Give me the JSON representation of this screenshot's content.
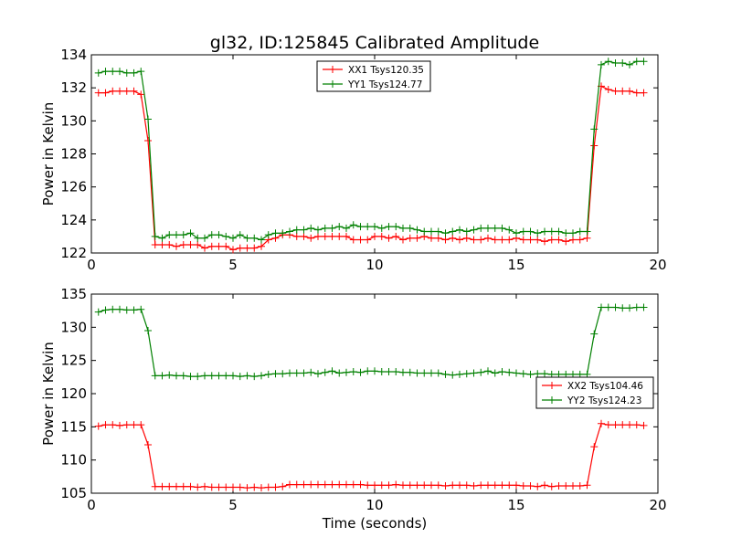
{
  "chart_data": [
    {
      "type": "line",
      "title": "gl32, ID:125845 Calibrated Amplitude",
      "xlabel": "",
      "ylabel": "Power in Kelvin",
      "xlim": [
        0,
        20
      ],
      "ylim": [
        122,
        134
      ],
      "xticks": [
        0,
        5,
        10,
        15,
        20
      ],
      "yticks": [
        122,
        124,
        126,
        128,
        130,
        132,
        134
      ],
      "legend_position": "top-center",
      "series": [
        {
          "name": "XX1 Tsys120.35",
          "color": "#ff0000",
          "x": [
            0.25,
            0.5,
            0.75,
            1.0,
            1.25,
            1.5,
            1.75,
            2.0,
            2.25,
            2.5,
            2.75,
            3.0,
            3.25,
            3.5,
            3.75,
            4.0,
            4.25,
            4.5,
            4.75,
            5.0,
            5.25,
            5.5,
            5.75,
            6.0,
            6.25,
            6.5,
            6.75,
            7.0,
            7.25,
            7.5,
            7.75,
            8.0,
            8.25,
            8.5,
            8.75,
            9.0,
            9.25,
            9.5,
            9.75,
            10.0,
            10.25,
            10.5,
            10.75,
            11.0,
            11.25,
            11.5,
            11.75,
            12.0,
            12.25,
            12.5,
            12.75,
            13.0,
            13.25,
            13.5,
            13.75,
            14.0,
            14.25,
            14.5,
            14.75,
            15.0,
            15.25,
            15.5,
            15.75,
            16.0,
            16.25,
            16.5,
            16.75,
            17.0,
            17.25,
            17.5,
            17.75,
            18.0,
            18.25,
            18.5,
            18.75,
            19.0,
            19.25,
            19.5
          ],
          "y": [
            131.7,
            131.7,
            131.8,
            131.8,
            131.8,
            131.8,
            131.6,
            128.8,
            122.5,
            122.5,
            122.5,
            122.4,
            122.5,
            122.5,
            122.5,
            122.3,
            122.4,
            122.4,
            122.4,
            122.2,
            122.3,
            122.3,
            122.3,
            122.4,
            122.8,
            122.9,
            123.1,
            123.1,
            123.0,
            123.0,
            122.9,
            123.0,
            123.0,
            123.0,
            123.0,
            123.0,
            122.8,
            122.8,
            122.8,
            123.0,
            123.0,
            122.9,
            123.0,
            122.8,
            122.9,
            122.9,
            123.0,
            122.9,
            122.9,
            122.8,
            122.9,
            122.8,
            122.9,
            122.8,
            122.8,
            122.9,
            122.8,
            122.8,
            122.8,
            122.9,
            122.8,
            122.8,
            122.8,
            122.7,
            122.8,
            122.8,
            122.7,
            122.8,
            122.8,
            122.9,
            128.5,
            132.1,
            131.9,
            131.8,
            131.8,
            131.8,
            131.7,
            131.7
          ]
        },
        {
          "name": "YY1 Tsys124.77",
          "color": "#008000",
          "x": [
            0.25,
            0.5,
            0.75,
            1.0,
            1.25,
            1.5,
            1.75,
            2.0,
            2.25,
            2.5,
            2.75,
            3.0,
            3.25,
            3.5,
            3.75,
            4.0,
            4.25,
            4.5,
            4.75,
            5.0,
            5.25,
            5.5,
            5.75,
            6.0,
            6.25,
            6.5,
            6.75,
            7.0,
            7.25,
            7.5,
            7.75,
            8.0,
            8.25,
            8.5,
            8.75,
            9.0,
            9.25,
            9.5,
            9.75,
            10.0,
            10.25,
            10.5,
            10.75,
            11.0,
            11.25,
            11.5,
            11.75,
            12.0,
            12.25,
            12.5,
            12.75,
            13.0,
            13.25,
            13.5,
            13.75,
            14.0,
            14.25,
            14.5,
            14.75,
            15.0,
            15.25,
            15.5,
            15.75,
            16.0,
            16.25,
            16.5,
            16.75,
            17.0,
            17.25,
            17.5,
            17.75,
            18.0,
            18.25,
            18.5,
            18.75,
            19.0,
            19.25,
            19.5
          ],
          "y": [
            132.9,
            133.0,
            133.0,
            133.0,
            132.9,
            132.9,
            133.0,
            130.1,
            123.0,
            122.9,
            123.1,
            123.1,
            123.1,
            123.2,
            122.9,
            122.9,
            123.1,
            123.1,
            123.0,
            122.9,
            123.1,
            122.9,
            122.9,
            122.8,
            123.1,
            123.2,
            123.2,
            123.3,
            123.4,
            123.4,
            123.5,
            123.4,
            123.5,
            123.5,
            123.6,
            123.5,
            123.7,
            123.6,
            123.6,
            123.6,
            123.5,
            123.6,
            123.6,
            123.5,
            123.5,
            123.4,
            123.3,
            123.3,
            123.3,
            123.2,
            123.3,
            123.4,
            123.3,
            123.4,
            123.5,
            123.5,
            123.5,
            123.5,
            123.4,
            123.2,
            123.3,
            123.3,
            123.2,
            123.3,
            123.3,
            123.3,
            123.2,
            123.2,
            123.3,
            123.3,
            129.5,
            133.4,
            133.6,
            133.5,
            133.5,
            133.4,
            133.6,
            133.6
          ]
        }
      ]
    },
    {
      "type": "line",
      "title": "",
      "xlabel": "Time (seconds)",
      "ylabel": "Power in Kelvin",
      "xlim": [
        0,
        20
      ],
      "ylim": [
        105,
        135
      ],
      "xticks": [
        0,
        5,
        10,
        15,
        20
      ],
      "yticks": [
        105,
        110,
        115,
        120,
        125,
        130,
        135
      ],
      "legend_position": "center-right",
      "series": [
        {
          "name": "XX2 Tsys104.46",
          "color": "#ff0000",
          "x": [
            0.25,
            0.5,
            0.75,
            1.0,
            1.25,
            1.5,
            1.75,
            2.0,
            2.25,
            2.5,
            2.75,
            3.0,
            3.25,
            3.5,
            3.75,
            4.0,
            4.25,
            4.5,
            4.75,
            5.0,
            5.25,
            5.5,
            5.75,
            6.0,
            6.25,
            6.5,
            6.75,
            7.0,
            7.25,
            7.5,
            7.75,
            8.0,
            8.25,
            8.5,
            8.75,
            9.0,
            9.25,
            9.5,
            9.75,
            10.0,
            10.25,
            10.5,
            10.75,
            11.0,
            11.25,
            11.5,
            11.75,
            12.0,
            12.25,
            12.5,
            12.75,
            13.0,
            13.25,
            13.5,
            13.75,
            14.0,
            14.25,
            14.5,
            14.75,
            15.0,
            15.25,
            15.5,
            15.75,
            16.0,
            16.25,
            16.5,
            16.75,
            17.0,
            17.25,
            17.5,
            17.75,
            18.0,
            18.25,
            18.5,
            18.75,
            19.0,
            19.25,
            19.5
          ],
          "y": [
            115.1,
            115.3,
            115.3,
            115.2,
            115.3,
            115.3,
            115.3,
            112.3,
            106.0,
            106.0,
            106.0,
            106.0,
            106.0,
            106.0,
            105.9,
            106.0,
            105.9,
            105.9,
            105.9,
            105.9,
            105.9,
            105.8,
            105.9,
            105.8,
            105.9,
            105.9,
            106.0,
            106.3,
            106.3,
            106.3,
            106.3,
            106.3,
            106.3,
            106.3,
            106.3,
            106.3,
            106.3,
            106.3,
            106.2,
            106.2,
            106.2,
            106.2,
            106.3,
            106.2,
            106.2,
            106.2,
            106.2,
            106.2,
            106.2,
            106.1,
            106.2,
            106.2,
            106.2,
            106.1,
            106.2,
            106.2,
            106.2,
            106.2,
            106.2,
            106.2,
            106.1,
            106.1,
            106.0,
            106.2,
            106.0,
            106.1,
            106.1,
            106.1,
            106.1,
            106.2,
            112.0,
            115.5,
            115.3,
            115.3,
            115.3,
            115.3,
            115.3,
            115.2
          ]
        },
        {
          "name": "YY2 Tsys124.23",
          "color": "#008000",
          "x": [
            0.25,
            0.5,
            0.75,
            1.0,
            1.25,
            1.5,
            1.75,
            2.0,
            2.25,
            2.5,
            2.75,
            3.0,
            3.25,
            3.5,
            3.75,
            4.0,
            4.25,
            4.5,
            4.75,
            5.0,
            5.25,
            5.5,
            5.75,
            6.0,
            6.25,
            6.5,
            6.75,
            7.0,
            7.25,
            7.5,
            7.75,
            8.0,
            8.25,
            8.5,
            8.75,
            9.0,
            9.25,
            9.5,
            9.75,
            10.0,
            10.25,
            10.5,
            10.75,
            11.0,
            11.25,
            11.5,
            11.75,
            12.0,
            12.25,
            12.5,
            12.75,
            13.0,
            13.25,
            13.5,
            13.75,
            14.0,
            14.25,
            14.5,
            14.75,
            15.0,
            15.25,
            15.5,
            15.75,
            16.0,
            16.25,
            16.5,
            16.75,
            17.0,
            17.25,
            17.5,
            17.75,
            18.0,
            18.25,
            18.5,
            18.75,
            19.0,
            19.25,
            19.5
          ],
          "y": [
            132.3,
            132.6,
            132.7,
            132.7,
            132.6,
            132.6,
            132.7,
            129.5,
            122.7,
            122.7,
            122.8,
            122.7,
            122.7,
            122.6,
            122.6,
            122.7,
            122.7,
            122.7,
            122.7,
            122.7,
            122.6,
            122.7,
            122.6,
            122.7,
            122.9,
            123.0,
            123.0,
            123.1,
            123.1,
            123.1,
            123.2,
            123.0,
            123.2,
            123.4,
            123.1,
            123.2,
            123.3,
            123.2,
            123.4,
            123.4,
            123.3,
            123.3,
            123.3,
            123.2,
            123.2,
            123.1,
            123.1,
            123.1,
            123.1,
            122.9,
            122.8,
            122.9,
            123.0,
            123.1,
            123.2,
            123.4,
            123.1,
            123.3,
            123.2,
            123.1,
            123.0,
            122.9,
            123.0,
            123.0,
            122.9,
            122.9,
            122.9,
            122.9,
            122.9,
            122.9,
            129.0,
            133.0,
            133.0,
            133.0,
            132.9,
            132.9,
            133.0,
            133.0
          ]
        }
      ]
    }
  ]
}
